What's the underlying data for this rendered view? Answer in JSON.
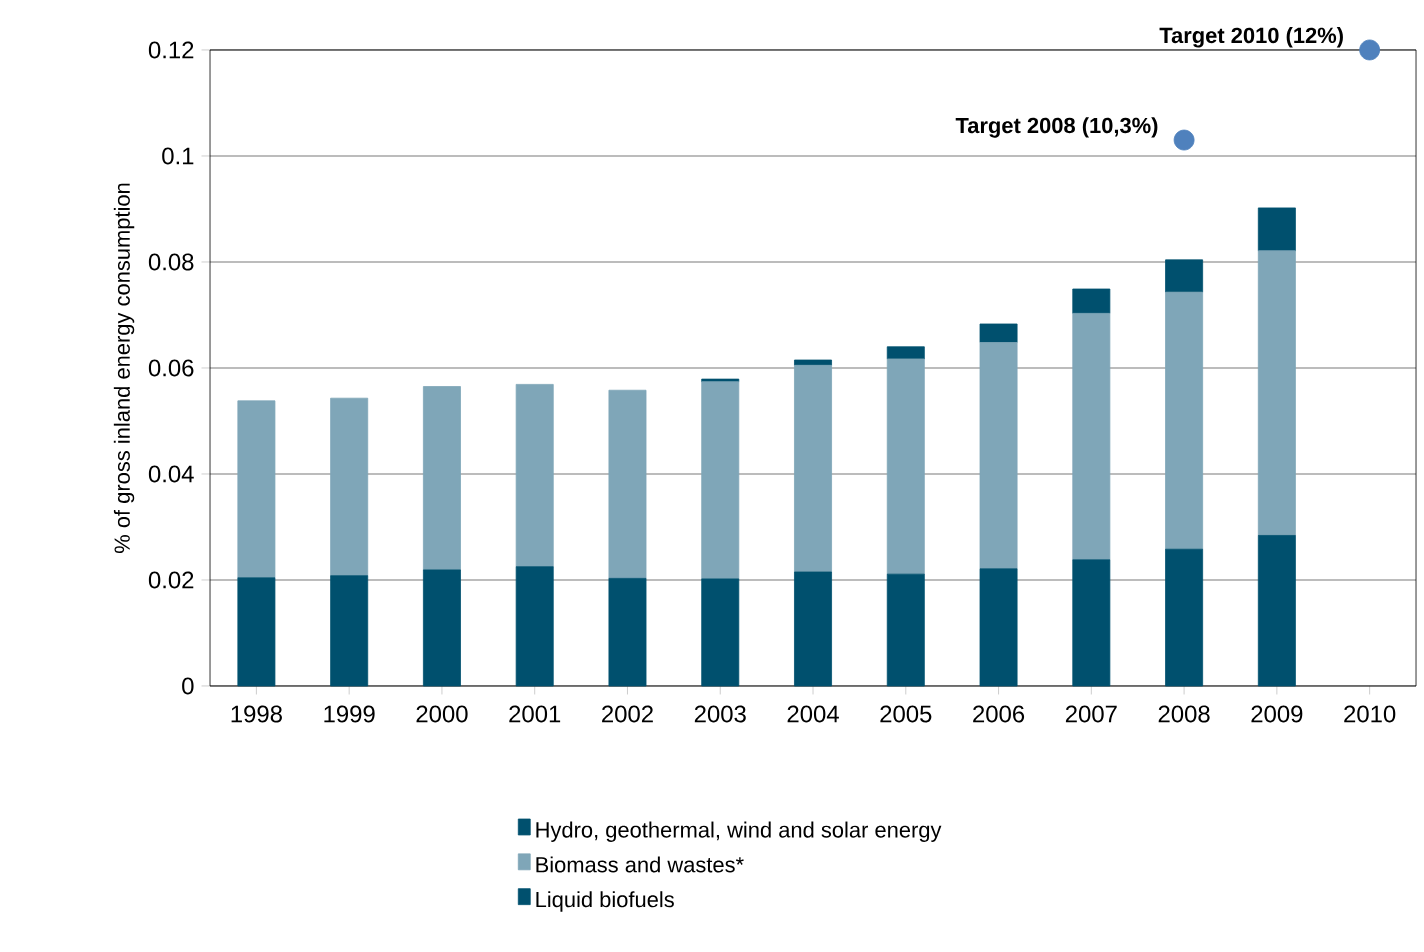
{
  "chart_data": {
    "type": "bar",
    "stacked": true,
    "ylabel": "% of  gross inland energy consumption",
    "categories": [
      "1998",
      "1999",
      "2000",
      "2001",
      "2002",
      "2003",
      "2004",
      "2005",
      "2006",
      "2007",
      "2008",
      "2009",
      "2010"
    ],
    "series": [
      {
        "name": "Hydro, geothermal, wind and solar energy",
        "color": "#00506e",
        "values": [
          0.0204,
          0.0208,
          0.0219,
          0.0225,
          0.0203,
          0.0202,
          0.0215,
          0.0211,
          0.0221,
          0.0238,
          0.0258,
          0.0284,
          null
        ]
      },
      {
        "name": "Biomass and wastes*",
        "color": "#7fa6b8",
        "values": [
          0.0334,
          0.0335,
          0.0346,
          0.0344,
          0.0355,
          0.0372,
          0.039,
          0.0406,
          0.0427,
          0.0465,
          0.0485,
          0.0537,
          null
        ]
      },
      {
        "name": "Liquid biofuels",
        "color": "#00506e",
        "values": [
          0.0,
          0.0,
          0.0,
          0.0,
          0.0,
          0.0005,
          0.001,
          0.0023,
          0.0035,
          0.0046,
          0.0061,
          0.0081,
          null
        ]
      },
      {
        "type": "scatter",
        "color": "#4f81bd",
        "values": [
          null,
          null,
          null,
          null,
          null,
          null,
          null,
          null,
          null,
          null,
          0.103,
          null,
          0.12
        ]
      }
    ],
    "annotations": [
      {
        "text": "Target 2008 (10,3%)",
        "x": "2008",
        "y": 0.103
      },
      {
        "text": "Target 2010 (12%)",
        "x": "2010",
        "y": 0.12
      }
    ],
    "ylim": [
      0,
      0.12
    ],
    "yticks": [
      0,
      0.02,
      0.04,
      0.06,
      0.08,
      0.1,
      0.12
    ],
    "grid": "y",
    "legend": "bottom"
  }
}
